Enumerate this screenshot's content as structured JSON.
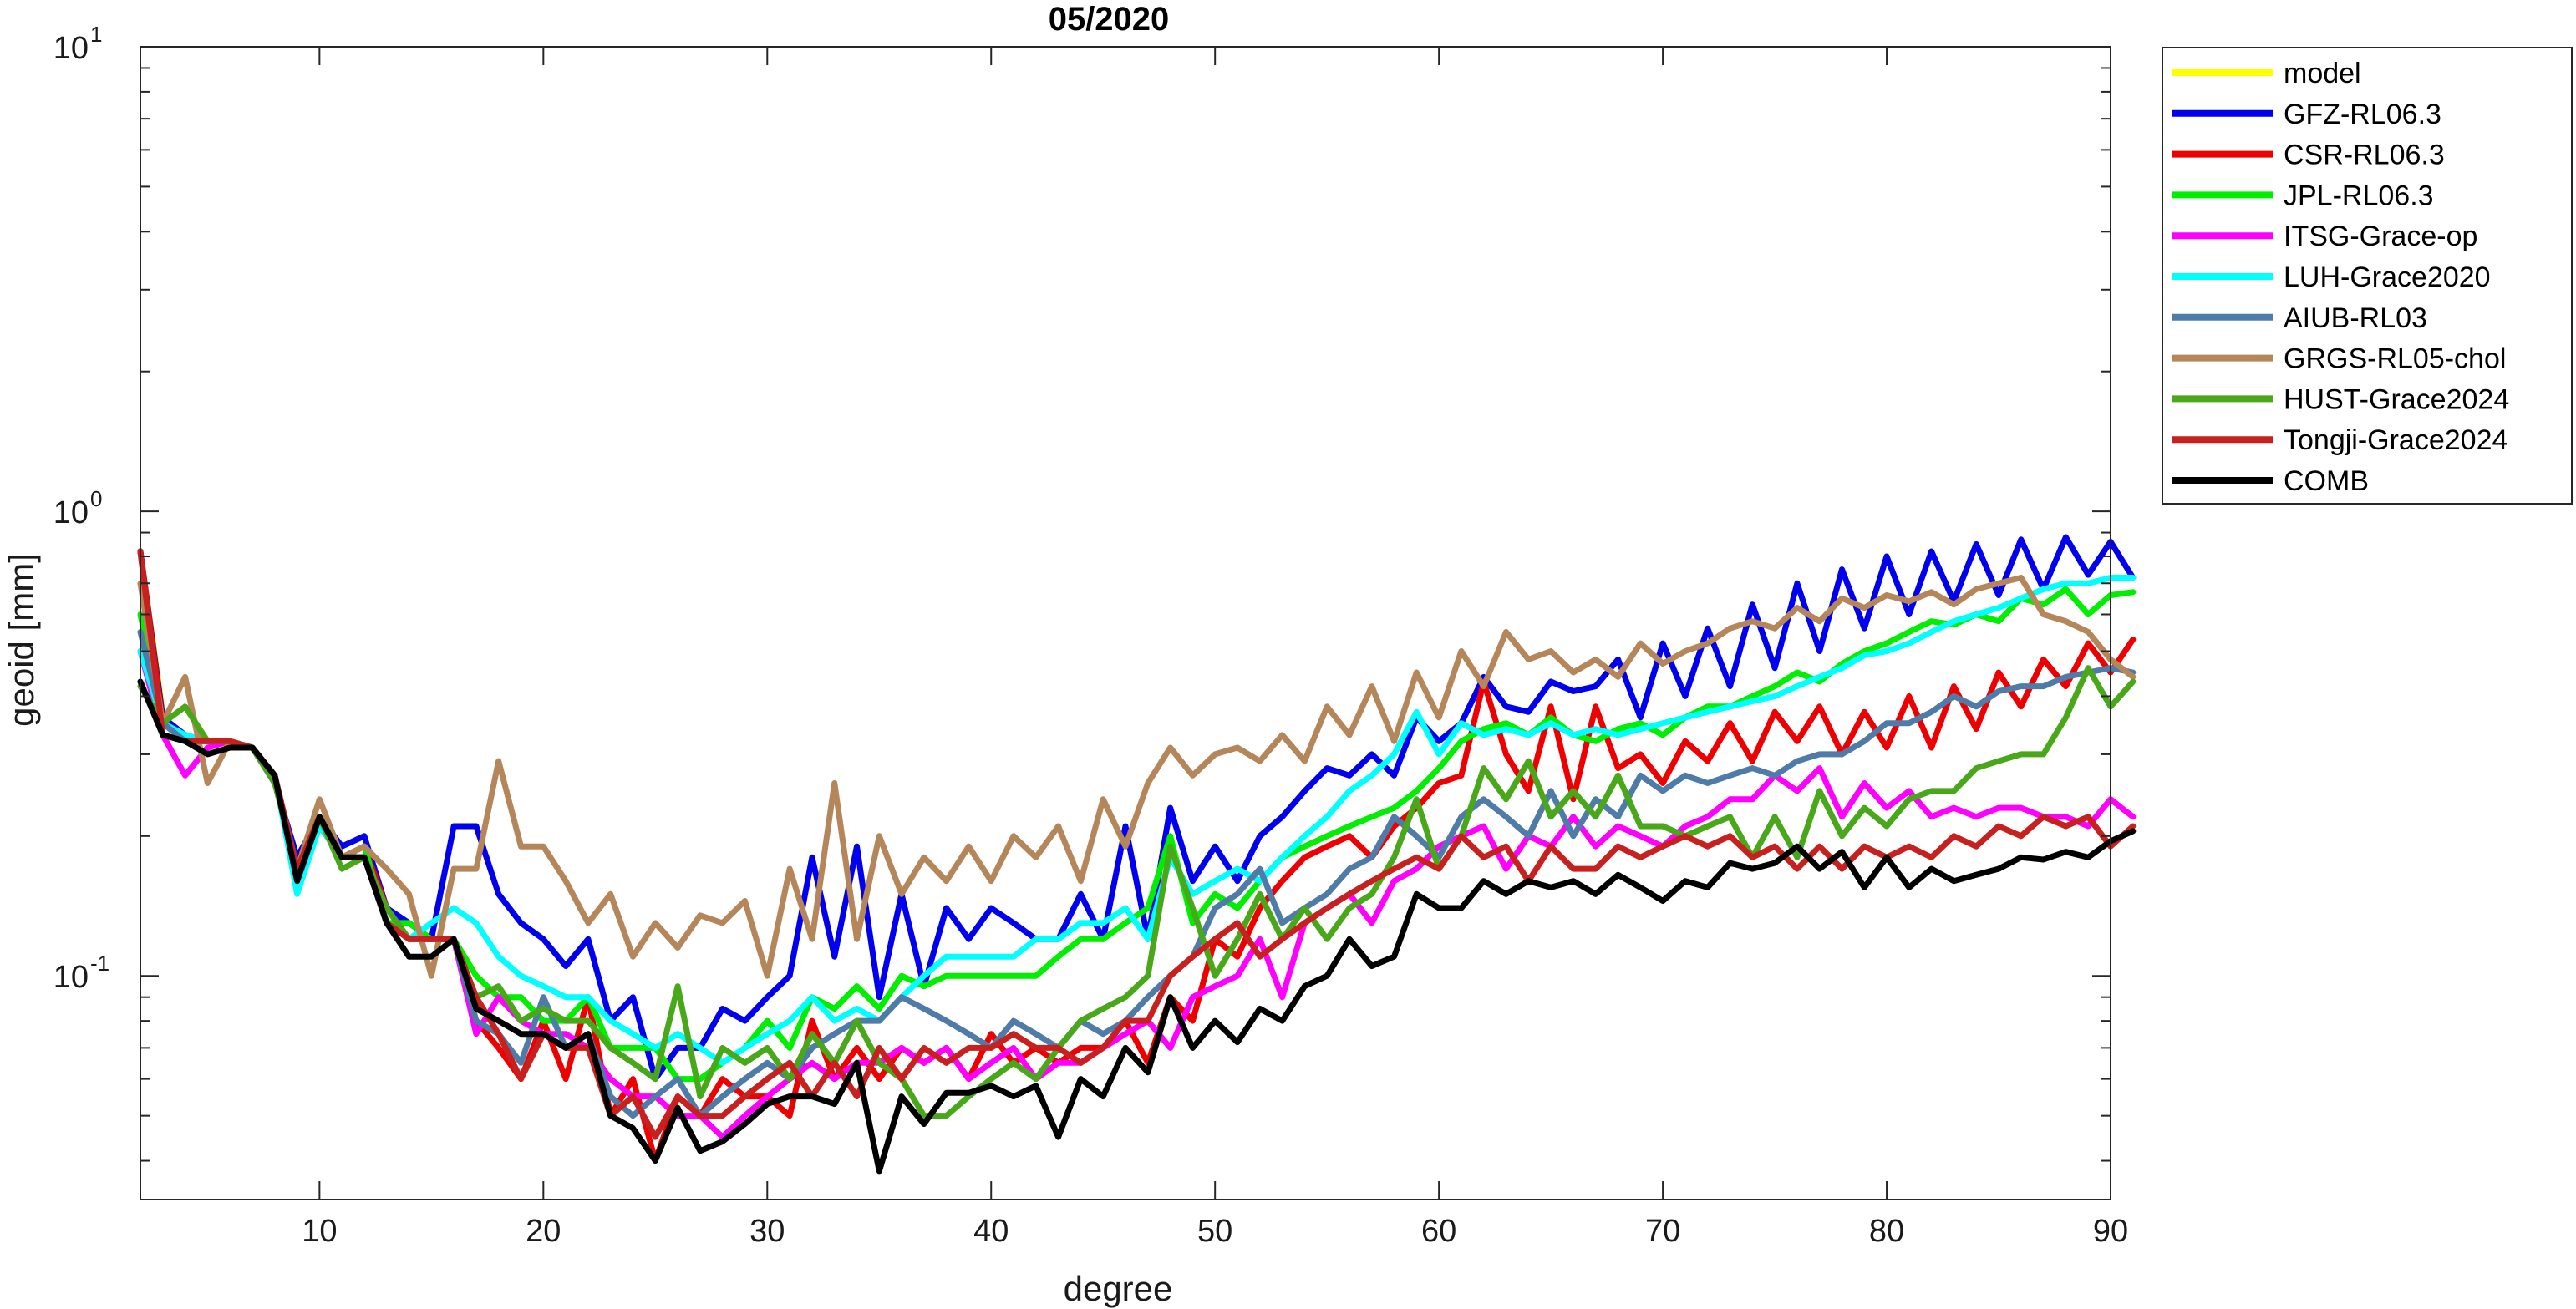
{
  "chart_data": {
    "type": "line",
    "title": "05/2020",
    "xlabel": "degree",
    "ylabel": "geoid [mm]",
    "xlim": [
      2,
      90
    ],
    "ylim": [
      0.033,
      10
    ],
    "yscale": "log",
    "grid": false,
    "legend_position": "outside-top-right",
    "x_ticks": [
      "10",
      "20",
      "30",
      "40",
      "50",
      "60",
      "70",
      "80",
      "90"
    ],
    "y_ticks": [
      {
        "base": "10",
        "exp": "1"
      },
      {
        "base": "10",
        "exp": "0"
      },
      {
        "base": "10",
        "exp": "-1"
      }
    ],
    "x_start": 2,
    "series": [
      {
        "name": "model",
        "color": "#FFFF00",
        "values": [
          0.82,
          0.37
        ]
      },
      {
        "name": "GFZ-RL06.3",
        "color": "#0000EE",
        "values": [
          0.82,
          0.36,
          0.33,
          0.32,
          0.32,
          0.31,
          0.26,
          0.18,
          0.22,
          0.19,
          0.2,
          0.14,
          0.13,
          0.12,
          0.21,
          0.21,
          0.15,
          0.13,
          0.12,
          0.105,
          0.12,
          0.08,
          0.09,
          0.06,
          0.07,
          0.07,
          0.085,
          0.08,
          0.09,
          0.1,
          0.18,
          0.11,
          0.19,
          0.09,
          0.15,
          0.095,
          0.14,
          0.12,
          0.14,
          0.13,
          0.12,
          0.12,
          0.15,
          0.12,
          0.21,
          0.12,
          0.23,
          0.16,
          0.19,
          0.16,
          0.2,
          0.22,
          0.25,
          0.28,
          0.27,
          0.3,
          0.27,
          0.36,
          0.32,
          0.35,
          0.44,
          0.38,
          0.37,
          0.43,
          0.41,
          0.42,
          0.48,
          0.36,
          0.52,
          0.4,
          0.56,
          0.42,
          0.63,
          0.46,
          0.7,
          0.5,
          0.75,
          0.56,
          0.8,
          0.6,
          0.82,
          0.64,
          0.85,
          0.66,
          0.87,
          0.68,
          0.88,
          0.73,
          0.86,
          0.72
        ]
      },
      {
        "name": "CSR-RL06.3",
        "color": "#EE0000",
        "values": [
          0.82,
          0.35,
          0.32,
          0.32,
          0.32,
          0.31,
          0.27,
          0.17,
          0.21,
          0.18,
          0.19,
          0.14,
          0.12,
          0.12,
          0.12,
          0.08,
          0.07,
          0.06,
          0.08,
          0.06,
          0.09,
          0.05,
          0.06,
          0.04,
          0.055,
          0.05,
          0.06,
          0.055,
          0.055,
          0.05,
          0.08,
          0.06,
          0.07,
          0.06,
          0.07,
          0.065,
          0.07,
          0.06,
          0.075,
          0.065,
          0.07,
          0.065,
          0.07,
          0.07,
          0.08,
          0.065,
          0.09,
          0.08,
          0.12,
          0.11,
          0.14,
          0.16,
          0.18,
          0.19,
          0.2,
          0.18,
          0.21,
          0.23,
          0.26,
          0.27,
          0.43,
          0.3,
          0.25,
          0.38,
          0.24,
          0.38,
          0.28,
          0.3,
          0.26,
          0.32,
          0.29,
          0.35,
          0.29,
          0.37,
          0.32,
          0.38,
          0.3,
          0.37,
          0.31,
          0.4,
          0.31,
          0.42,
          0.34,
          0.45,
          0.38,
          0.48,
          0.42,
          0.52,
          0.45,
          0.53
        ]
      },
      {
        "name": "JPL-RL06.3",
        "color": "#00EE00",
        "values": [
          0.6,
          0.35,
          0.33,
          0.32,
          0.32,
          0.31,
          0.27,
          0.17,
          0.22,
          0.18,
          0.19,
          0.13,
          0.13,
          0.12,
          0.12,
          0.1,
          0.09,
          0.09,
          0.08,
          0.08,
          0.09,
          0.07,
          0.07,
          0.07,
          0.06,
          0.06,
          0.065,
          0.07,
          0.08,
          0.07,
          0.09,
          0.085,
          0.095,
          0.085,
          0.1,
          0.095,
          0.1,
          0.1,
          0.1,
          0.1,
          0.1,
          0.11,
          0.12,
          0.12,
          0.13,
          0.14,
          0.2,
          0.13,
          0.15,
          0.14,
          0.16,
          0.18,
          0.19,
          0.2,
          0.21,
          0.22,
          0.23,
          0.25,
          0.28,
          0.32,
          0.34,
          0.35,
          0.33,
          0.36,
          0.33,
          0.32,
          0.34,
          0.35,
          0.33,
          0.36,
          0.38,
          0.38,
          0.4,
          0.42,
          0.45,
          0.43,
          0.47,
          0.5,
          0.52,
          0.55,
          0.58,
          0.57,
          0.6,
          0.58,
          0.65,
          0.63,
          0.68,
          0.6,
          0.66,
          0.67
        ]
      },
      {
        "name": "ITSG-Grace-op",
        "color": "#FF00FF",
        "values": [
          0.5,
          0.33,
          0.27,
          0.31,
          0.32,
          0.31,
          0.27,
          0.17,
          0.22,
          0.18,
          0.18,
          0.13,
          0.12,
          0.12,
          0.12,
          0.075,
          0.09,
          0.08,
          0.075,
          0.075,
          0.07,
          0.06,
          0.055,
          0.055,
          0.05,
          0.05,
          0.045,
          0.05,
          0.055,
          0.06,
          0.065,
          0.06,
          0.065,
          0.065,
          0.07,
          0.065,
          0.07,
          0.06,
          0.065,
          0.07,
          0.06,
          0.065,
          0.065,
          0.07,
          0.075,
          0.08,
          0.07,
          0.09,
          0.095,
          0.1,
          0.12,
          0.09,
          0.13,
          0.14,
          0.15,
          0.13,
          0.16,
          0.17,
          0.19,
          0.2,
          0.21,
          0.17,
          0.2,
          0.19,
          0.22,
          0.19,
          0.21,
          0.2,
          0.19,
          0.21,
          0.22,
          0.24,
          0.24,
          0.27,
          0.25,
          0.28,
          0.22,
          0.26,
          0.23,
          0.25,
          0.22,
          0.23,
          0.22,
          0.23,
          0.23,
          0.22,
          0.22,
          0.21,
          0.24,
          0.22
        ]
      },
      {
        "name": "LUH-Grace2020",
        "color": "#00FFFF",
        "values": [
          0.5,
          0.35,
          0.33,
          0.32,
          0.32,
          0.31,
          0.27,
          0.15,
          0.21,
          0.18,
          0.18,
          0.13,
          0.12,
          0.13,
          0.14,
          0.13,
          0.11,
          0.1,
          0.095,
          0.09,
          0.09,
          0.08,
          0.075,
          0.07,
          0.075,
          0.07,
          0.065,
          0.07,
          0.075,
          0.08,
          0.09,
          0.08,
          0.085,
          0.08,
          0.09,
          0.1,
          0.11,
          0.11,
          0.11,
          0.11,
          0.12,
          0.12,
          0.13,
          0.13,
          0.14,
          0.12,
          0.18,
          0.15,
          0.16,
          0.17,
          0.16,
          0.18,
          0.2,
          0.22,
          0.25,
          0.27,
          0.3,
          0.37,
          0.3,
          0.35,
          0.33,
          0.34,
          0.33,
          0.35,
          0.33,
          0.34,
          0.33,
          0.34,
          0.35,
          0.36,
          0.37,
          0.38,
          0.39,
          0.4,
          0.42,
          0.44,
          0.46,
          0.49,
          0.5,
          0.52,
          0.55,
          0.58,
          0.6,
          0.62,
          0.65,
          0.68,
          0.7,
          0.7,
          0.72,
          0.72
        ]
      },
      {
        "name": "AIUB-RL03",
        "color": "#4F7BA8",
        "values": [
          0.55,
          0.35,
          0.32,
          0.32,
          0.32,
          0.31,
          0.27,
          0.17,
          0.22,
          0.18,
          0.18,
          0.13,
          0.12,
          0.12,
          0.12,
          0.08,
          0.075,
          0.065,
          0.09,
          0.07,
          0.075,
          0.055,
          0.05,
          0.055,
          0.06,
          0.05,
          0.055,
          0.06,
          0.065,
          0.06,
          0.07,
          0.075,
          0.08,
          0.08,
          0.09,
          0.085,
          0.08,
          0.075,
          0.07,
          0.08,
          0.075,
          0.07,
          0.08,
          0.075,
          0.08,
          0.09,
          0.1,
          0.11,
          0.14,
          0.15,
          0.17,
          0.13,
          0.14,
          0.15,
          0.17,
          0.18,
          0.22,
          0.2,
          0.18,
          0.22,
          0.24,
          0.22,
          0.2,
          0.25,
          0.2,
          0.24,
          0.22,
          0.27,
          0.25,
          0.27,
          0.26,
          0.27,
          0.28,
          0.27,
          0.29,
          0.3,
          0.3,
          0.32,
          0.35,
          0.35,
          0.37,
          0.4,
          0.38,
          0.41,
          0.42,
          0.42,
          0.44,
          0.45,
          0.46,
          0.45
        ]
      },
      {
        "name": "GRGS-RL05-chol",
        "color": "#B5865A",
        "values": [
          0.7,
          0.35,
          0.44,
          0.26,
          0.32,
          0.31,
          0.27,
          0.17,
          0.24,
          0.18,
          0.19,
          0.17,
          0.15,
          0.1,
          0.17,
          0.17,
          0.29,
          0.19,
          0.19,
          0.16,
          0.13,
          0.15,
          0.11,
          0.13,
          0.115,
          0.135,
          0.13,
          0.145,
          0.1,
          0.17,
          0.12,
          0.26,
          0.12,
          0.2,
          0.15,
          0.18,
          0.16,
          0.19,
          0.16,
          0.2,
          0.18,
          0.21,
          0.16,
          0.24,
          0.19,
          0.26,
          0.31,
          0.27,
          0.3,
          0.31,
          0.29,
          0.33,
          0.29,
          0.38,
          0.33,
          0.42,
          0.32,
          0.45,
          0.36,
          0.5,
          0.42,
          0.55,
          0.48,
          0.5,
          0.45,
          0.48,
          0.44,
          0.52,
          0.47,
          0.5,
          0.52,
          0.56,
          0.58,
          0.56,
          0.62,
          0.58,
          0.65,
          0.62,
          0.66,
          0.64,
          0.67,
          0.63,
          0.68,
          0.7,
          0.72,
          0.6,
          0.58,
          0.55,
          0.48,
          0.44
        ]
      },
      {
        "name": "HUST-Grace2024",
        "color": "#49A81A",
        "values": [
          0.42,
          0.35,
          0.38,
          0.32,
          0.32,
          0.31,
          0.26,
          0.17,
          0.22,
          0.17,
          0.18,
          0.14,
          0.12,
          0.12,
          0.12,
          0.09,
          0.095,
          0.08,
          0.085,
          0.08,
          0.08,
          0.07,
          0.065,
          0.06,
          0.095,
          0.055,
          0.07,
          0.065,
          0.07,
          0.06,
          0.075,
          0.065,
          0.08,
          0.065,
          0.06,
          0.05,
          0.05,
          0.055,
          0.06,
          0.065,
          0.06,
          0.07,
          0.08,
          0.085,
          0.09,
          0.1,
          0.19,
          0.14,
          0.1,
          0.12,
          0.15,
          0.12,
          0.14,
          0.12,
          0.14,
          0.15,
          0.18,
          0.24,
          0.17,
          0.2,
          0.28,
          0.24,
          0.29,
          0.22,
          0.25,
          0.22,
          0.27,
          0.21,
          0.21,
          0.2,
          0.21,
          0.22,
          0.18,
          0.22,
          0.18,
          0.25,
          0.2,
          0.23,
          0.21,
          0.24,
          0.25,
          0.25,
          0.28,
          0.29,
          0.3,
          0.3,
          0.36,
          0.46,
          0.38,
          0.43
        ]
      },
      {
        "name": "Tongji-Grace2024",
        "color": "#C8201F",
        "values": [
          0.82,
          0.33,
          0.32,
          0.32,
          0.32,
          0.31,
          0.27,
          0.17,
          0.22,
          0.18,
          0.18,
          0.13,
          0.12,
          0.12,
          0.12,
          0.09,
          0.075,
          0.06,
          0.075,
          0.07,
          0.07,
          0.05,
          0.055,
          0.045,
          0.055,
          0.05,
          0.05,
          0.055,
          0.06,
          0.065,
          0.055,
          0.065,
          0.055,
          0.07,
          0.06,
          0.07,
          0.065,
          0.07,
          0.07,
          0.075,
          0.07,
          0.07,
          0.065,
          0.07,
          0.08,
          0.08,
          0.1,
          0.11,
          0.12,
          0.13,
          0.11,
          0.12,
          0.13,
          0.14,
          0.15,
          0.16,
          0.17,
          0.18,
          0.17,
          0.2,
          0.18,
          0.19,
          0.16,
          0.19,
          0.17,
          0.17,
          0.19,
          0.18,
          0.19,
          0.2,
          0.19,
          0.2,
          0.18,
          0.19,
          0.17,
          0.19,
          0.17,
          0.19,
          0.18,
          0.19,
          0.18,
          0.2,
          0.19,
          0.21,
          0.2,
          0.22,
          0.21,
          0.22,
          0.19,
          0.21
        ]
      },
      {
        "name": "COMB",
        "color": "#000000",
        "values": [
          0.43,
          0.33,
          0.32,
          0.3,
          0.31,
          0.31,
          0.27,
          0.16,
          0.22,
          0.18,
          0.18,
          0.13,
          0.11,
          0.11,
          0.12,
          0.085,
          0.08,
          0.075,
          0.075,
          0.07,
          0.075,
          0.05,
          0.047,
          0.04,
          0.052,
          0.042,
          0.044,
          0.048,
          0.053,
          0.055,
          0.055,
          0.053,
          0.065,
          0.038,
          0.055,
          0.048,
          0.056,
          0.056,
          0.058,
          0.055,
          0.058,
          0.045,
          0.06,
          0.055,
          0.07,
          0.062,
          0.09,
          0.07,
          0.08,
          0.072,
          0.085,
          0.08,
          0.095,
          0.1,
          0.12,
          0.105,
          0.11,
          0.15,
          0.14,
          0.14,
          0.16,
          0.15,
          0.16,
          0.155,
          0.16,
          0.15,
          0.165,
          0.155,
          0.145,
          0.16,
          0.155,
          0.175,
          0.17,
          0.175,
          0.19,
          0.17,
          0.185,
          0.155,
          0.18,
          0.155,
          0.17,
          0.16,
          0.165,
          0.17,
          0.18,
          0.178,
          0.185,
          0.18,
          0.195,
          0.205
        ]
      }
    ]
  }
}
